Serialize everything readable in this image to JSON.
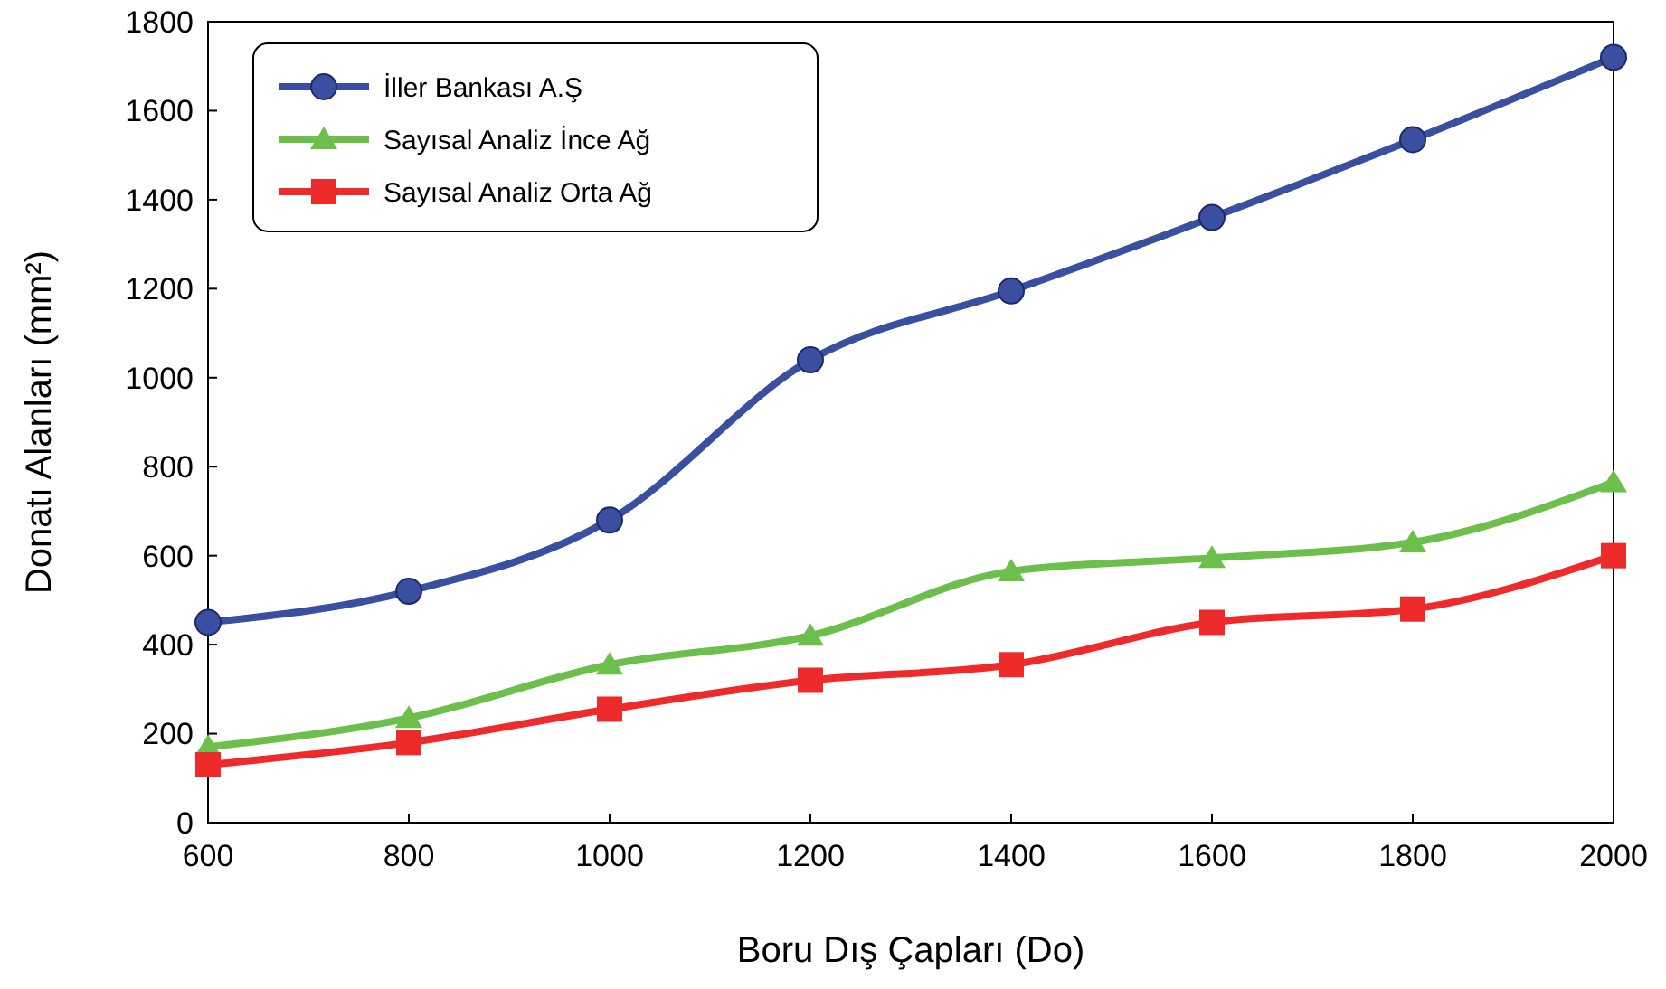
{
  "chart_data": {
    "type": "line",
    "xlabel": "Boru Dış Çapları (Do)",
    "ylabel": "Donatı Alanları (mm²)",
    "x": [
      600,
      800,
      1000,
      1200,
      1400,
      1600,
      1800,
      2000
    ],
    "xlim": [
      600,
      2000
    ],
    "xticks": [
      600,
      800,
      1000,
      1200,
      1400,
      1600,
      1800,
      2000
    ],
    "ylim": [
      0,
      1800
    ],
    "yticks": [
      0,
      200,
      400,
      600,
      800,
      1000,
      1200,
      1400,
      1600,
      1800
    ],
    "grid": false,
    "legend": "top left",
    "series": [
      {
        "name": "İller Bankası A.Ş",
        "color": "#3a4fa0",
        "marker": "circle",
        "values": [
          450,
          520,
          680,
          1040,
          1195,
          1360,
          1535,
          1720
        ]
      },
      {
        "name": "Sayısal Analiz İnce Ağ",
        "color": "#6dbf4b",
        "marker": "triangle",
        "values": [
          170,
          235,
          355,
          420,
          565,
          595,
          630,
          765
        ]
      },
      {
        "name": "Sayısal Analiz Orta Ağ",
        "color": "#ee2a2a",
        "marker": "square",
        "values": [
          130,
          180,
          255,
          320,
          355,
          450,
          480,
          600
        ]
      }
    ]
  }
}
